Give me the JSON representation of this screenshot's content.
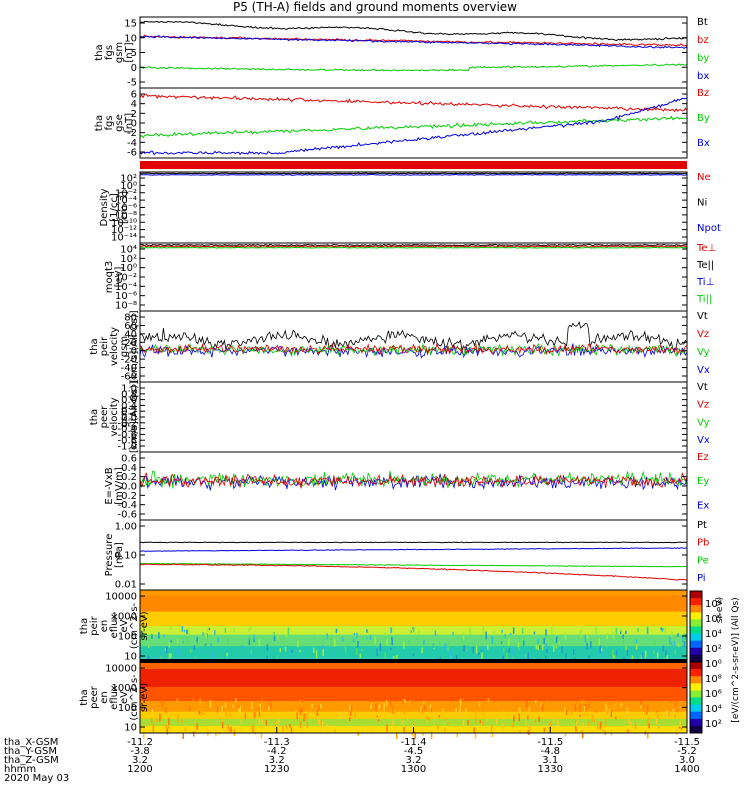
{
  "title": "P5 (TH-A) fields and ground moments overview",
  "colors": {
    "black": "#000000",
    "red": "#e00000",
    "green": "#00cc00",
    "blue": "#0000dd"
  },
  "panels": [
    {
      "id": "fgs",
      "ylabel": [
        "tha",
        "fgs",
        "gsm",
        "[nT]"
      ],
      "ticks": [
        "15",
        "10",
        "5",
        "0",
        "-5"
      ],
      "legend": [
        {
          "t": "Bt",
          "c": "black"
        },
        {
          "t": "bz",
          "c": "red"
        },
        {
          "t": "by",
          "c": "green"
        },
        {
          "t": "bx",
          "c": "blue"
        }
      ]
    },
    {
      "id": "fgsgse",
      "ylabel": [
        "tha",
        "fgs",
        "gse",
        "[nT]"
      ],
      "ticks": [
        "6",
        "4",
        "2",
        "0",
        "-2",
        "-4",
        "-6"
      ],
      "legend": [
        {
          "t": "Bz",
          "c": "red"
        },
        {
          "t": "By",
          "c": "green"
        },
        {
          "t": "Bx",
          "c": "blue"
        }
      ]
    },
    {
      "id": "density",
      "ylabel": [
        "Density",
        "[1/cc]",
        "[cm-3]"
      ],
      "ticks": [
        "10²",
        "10⁰",
        "10⁻²",
        "10⁻⁴",
        "10⁻⁶",
        "10⁻⁸",
        "10⁻¹⁰",
        "10⁻¹²",
        "10⁻¹⁴"
      ],
      "legend": [
        {
          "t": "Ne",
          "c": "red"
        },
        {
          "t": "Ni",
          "c": "black"
        },
        {
          "t": "Npot",
          "c": "blue"
        }
      ]
    },
    {
      "id": "temp",
      "ylabel": [
        "moqt3",
        "[eV]"
      ],
      "ticks": [
        "10⁴",
        "10²",
        "10⁰",
        "10⁻²",
        "10⁻⁴",
        "10⁻⁶",
        "10⁻⁸"
      ],
      "legend": [
        {
          "t": "Te⊥",
          "c": "red"
        },
        {
          "t": "Te||",
          "c": "black"
        },
        {
          "t": "Ti⊥",
          "c": "blue"
        },
        {
          "t": "Ti||",
          "c": "green"
        }
      ]
    },
    {
      "id": "peirv",
      "ylabel": [
        "tha",
        "peir",
        "velocity",
        "gsm",
        "[km/s](All Qs)]"
      ],
      "ticks": [
        "80",
        "60",
        "40",
        "20",
        "0",
        "-20",
        "-40",
        "-60"
      ],
      "legend": [
        {
          "t": "Vt",
          "c": "black"
        },
        {
          "t": "Vz",
          "c": "red"
        },
        {
          "t": "Vy",
          "c": "green"
        },
        {
          "t": "Vx",
          "c": "blue"
        }
      ]
    },
    {
      "id": "peerv",
      "ylabel": [
        "tha",
        "peer",
        "velocity",
        "gsm",
        "[km/s](All Qs)]"
      ],
      "ticks": [
        "1.0",
        "0.8",
        "0.6",
        "0.4",
        "0.2",
        "0.0",
        "-0.2",
        "-0.4",
        "-0.6",
        "-0.8",
        "-1.0"
      ],
      "legend": [
        {
          "t": "Vt",
          "c": "black"
        },
        {
          "t": "Vz",
          "c": "red"
        },
        {
          "t": "Vy",
          "c": "green"
        },
        {
          "t": "Vx",
          "c": "blue"
        }
      ]
    },
    {
      "id": "efield",
      "ylabel": [
        "E=-VxB",
        "[mV/m]"
      ],
      "ticks": [
        "0.6",
        "0.4",
        "0.2",
        "0.0",
        "-0.2",
        "-0.4",
        "-0.6"
      ],
      "legend": [
        {
          "t": "Ez",
          "c": "red"
        },
        {
          "t": "Ey",
          "c": "green"
        },
        {
          "t": "Ex",
          "c": "blue"
        }
      ]
    },
    {
      "id": "pressure",
      "ylabel": [
        "Pressure",
        "[nPa]"
      ],
      "ticks": [
        "1.00",
        "0.10",
        "0.01"
      ],
      "legend": [
        {
          "t": "Pt",
          "c": "black"
        },
        {
          "t": "Pb",
          "c": "red"
        },
        {
          "t": "Pe",
          "c": "green"
        },
        {
          "t": "Pi",
          "c": "blue"
        }
      ]
    },
    {
      "id": "peirspec",
      "ylabel": [
        "tha",
        "peir",
        "en",
        "eflux",
        "eV",
        "(cm^2-s-",
        "sr-eV)"
      ],
      "ticks": [
        "10000",
        "1000",
        "100",
        "10"
      ]
    },
    {
      "id": "peerspec",
      "ylabel": [
        "tha",
        "peer",
        "en",
        "eflux",
        "eV",
        "(cm^2-s-",
        "sr-eV)"
      ],
      "ticks": [
        "10000",
        "1000",
        "100",
        "10"
      ]
    }
  ],
  "colorbar": {
    "label": "[eV/(cm^2-s-sr-eV)] (All Qs)",
    "ticks_top": [
      "10⁸",
      "10⁶",
      "10⁴",
      "10²",
      "10⁰"
    ],
    "ticks_bottom": [
      "10⁸",
      "10⁶",
      "10⁴",
      "10²"
    ]
  },
  "axis_rows": [
    {
      "label": "tha_X-GSM",
      "values": [
        "-11.2",
        "-11.3",
        "-11.4",
        "-11.5",
        "-11.5"
      ]
    },
    {
      "label": "tha_Y-GSM",
      "values": [
        "-3.8",
        "-4.2",
        "-4.5",
        "-4.8",
        "-5.2"
      ]
    },
    {
      "label": "tha_Z-GSM",
      "values": [
        "3.2",
        "3.2",
        "3.2",
        "3.1",
        "3.0"
      ]
    },
    {
      "label": "hhmm",
      "values": [
        "1200",
        "1230",
        "1300",
        "1330",
        "1400"
      ]
    }
  ],
  "date": "2020 May 03",
  "right_label": "sr-eV)"
}
